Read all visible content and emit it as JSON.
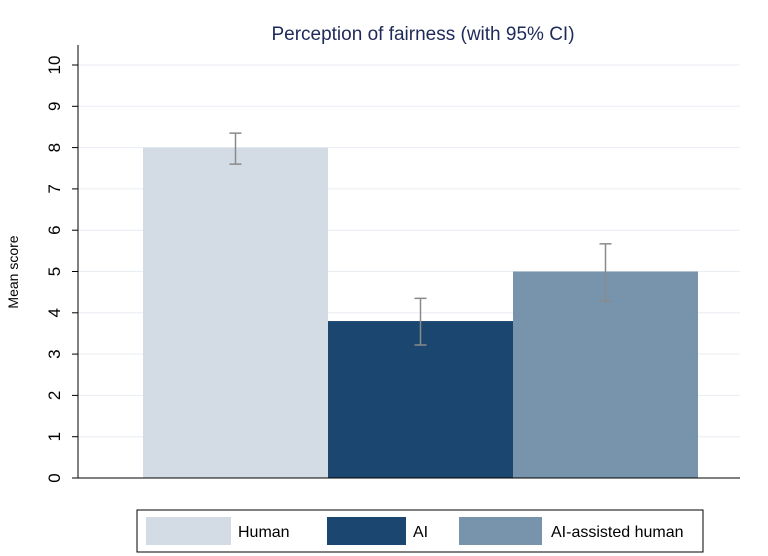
{
  "chart_data": {
    "type": "bar",
    "title": "Perception of fairness (with 95% CI)",
    "xlabel": "",
    "ylabel": "Mean score",
    "ylim": [
      0,
      10
    ],
    "yticks": [
      "0",
      "1",
      "2",
      "3",
      "4",
      "5",
      "6",
      "7",
      "8",
      "9",
      "10"
    ],
    "grid": true,
    "legend_position": "bottom",
    "series": [
      {
        "name": "Human",
        "value": 8.0,
        "ci_low": 7.6,
        "ci_high": 8.35,
        "color": "#d3dce5"
      },
      {
        "name": "AI",
        "value": 3.8,
        "ci_low": 3.22,
        "ci_high": 4.35,
        "color": "#1a4670"
      },
      {
        "name": "AI-assisted human",
        "value": 5.0,
        "ci_low": 4.28,
        "ci_high": 5.67,
        "color": "#7894ad"
      }
    ]
  }
}
